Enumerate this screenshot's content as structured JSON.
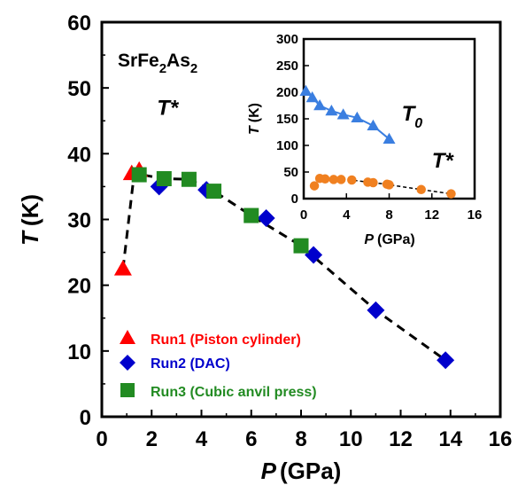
{
  "chart_data": [
    {
      "type": "scatter",
      "title": "",
      "compound_label": {
        "base": [
          "Sr",
          "Fe",
          "As"
        ],
        "subs": [
          "2",
          "2"
        ]
      },
      "xlabel": {
        "symbol": "P",
        "unit": "(GPa)"
      },
      "ylabel": {
        "symbol": "T",
        "unit": "(K)"
      },
      "xlim": [
        0,
        16
      ],
      "ylim": [
        0,
        60
      ],
      "xticks": [
        "0",
        "2",
        "4",
        "6",
        "8",
        "10",
        "12",
        "14",
        "16"
      ],
      "yticks": [
        "0",
        "10",
        "20",
        "30",
        "40",
        "50",
        "60"
      ],
      "annotation": {
        "symbol": "T*",
        "x": 1.5,
        "y": 40.5
      },
      "series": [
        {
          "name": "Run1 (Piston cylinder)",
          "marker": "triangle",
          "color": "#ff0000",
          "points": [
            [
              0.85,
              22.5
            ],
            [
              1.2,
              37.0
            ],
            [
              1.5,
              37.5
            ]
          ]
        },
        {
          "name": "Run2 (DAC)",
          "marker": "diamond",
          "color": "#0000cc",
          "points": [
            [
              2.3,
              35.0
            ],
            [
              4.2,
              34.5
            ],
            [
              6.6,
              30.2
            ],
            [
              8.5,
              24.6
            ],
            [
              11.0,
              16.2
            ],
            [
              13.8,
              8.6
            ]
          ]
        },
        {
          "name": "Run3 (Cubic anvil press)",
          "marker": "square",
          "color": "#228b22",
          "points": [
            [
              1.5,
              36.8
            ],
            [
              2.5,
              36.2
            ],
            [
              3.5,
              36.1
            ],
            [
              4.5,
              34.3
            ],
            [
              6.0,
              30.6
            ],
            [
              8.0,
              26.0
            ]
          ]
        }
      ],
      "trend_line": [
        [
          0.85,
          22.5
        ],
        [
          1.3,
          37.0
        ],
        [
          2.5,
          36.2
        ],
        [
          3.5,
          36.1
        ],
        [
          4.5,
          34.3
        ],
        [
          6.0,
          30.6
        ],
        [
          8.0,
          26.0
        ],
        [
          11.0,
          16.2
        ],
        [
          13.8,
          8.6
        ]
      ],
      "legend": "bottom-left"
    },
    {
      "type": "scatter",
      "title": "",
      "xlabel": {
        "symbol": "P",
        "unit": "(GPa)"
      },
      "ylabel": {
        "symbol": "T",
        "unit": "(K)"
      },
      "xlim": [
        0,
        16
      ],
      "ylim": [
        0,
        300
      ],
      "xticks": [
        "0",
        "4",
        "8",
        "12",
        "16"
      ],
      "yticks": [
        "0",
        "50",
        "100",
        "150",
        "200",
        "250",
        "300"
      ],
      "annotations": [
        {
          "symbol": "T",
          "sub": "0",
          "x": 10.0,
          "y": 147
        },
        {
          "symbol": "T*",
          "x": 12.0,
          "y": 58
        }
      ],
      "series": [
        {
          "label": "T0",
          "marker": "triangle",
          "color": "#3a7ee0",
          "points": [
            [
              0.2,
              202
            ],
            [
              0.8,
              190
            ],
            [
              1.5,
              175
            ],
            [
              2.6,
              165
            ],
            [
              3.7,
              158
            ],
            [
              5.0,
              152
            ],
            [
              6.5,
              137
            ],
            [
              8.0,
              112
            ]
          ]
        },
        {
          "label": "T*",
          "marker": "circle",
          "color": "#f08020",
          "points": [
            [
              1.0,
              24
            ],
            [
              1.5,
              38
            ],
            [
              2.0,
              37
            ],
            [
              2.8,
              36
            ],
            [
              3.5,
              36
            ],
            [
              4.5,
              35
            ],
            [
              6.0,
              31
            ],
            [
              6.5,
              30
            ],
            [
              7.8,
              27
            ],
            [
              8.0,
              26
            ],
            [
              11.0,
              17
            ],
            [
              13.8,
              9
            ]
          ]
        }
      ]
    }
  ],
  "legend_entries": [
    {
      "text": "Run1 (Piston cylinder)",
      "color": "#ff0000",
      "marker": "triangle"
    },
    {
      "text": "Run2 (DAC)",
      "color": "#0000cc",
      "marker": "diamond"
    },
    {
      "text": "Run3 (Cubic anvil press)",
      "color": "#228b22",
      "marker": "square"
    }
  ]
}
